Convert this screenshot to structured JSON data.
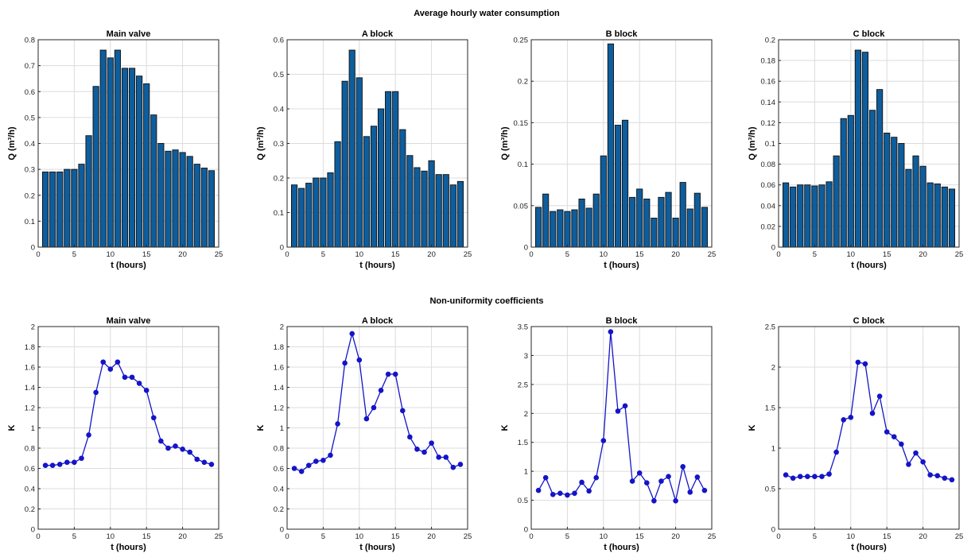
{
  "titles": {
    "top": "Average hourly water consumption",
    "bottom": "Non-uniformity coefficients"
  },
  "colors": {
    "bar": "#0e5d9c",
    "line": "#1414c8"
  },
  "chart_data": [
    {
      "type": "bar",
      "title": "Main valve",
      "xlabel": "t (hours)",
      "ylabel": "Q (m³/h)",
      "xlim": [
        0,
        25
      ],
      "ylim": [
        0,
        0.8
      ],
      "grid": true,
      "xticks": [
        0,
        5,
        10,
        15,
        20,
        25
      ],
      "yticks": [
        0,
        0.1,
        0.2,
        0.3,
        0.4,
        0.5,
        0.6,
        0.7,
        0.8
      ],
      "ytick_labels": [
        "0",
        "0.1",
        "0.2",
        "0.3",
        "0.4",
        "0.5",
        "0.6",
        "0.7",
        "0.8"
      ],
      "x": [
        1,
        2,
        3,
        4,
        5,
        6,
        7,
        8,
        9,
        10,
        11,
        12,
        13,
        14,
        15,
        16,
        17,
        18,
        19,
        20,
        21,
        22,
        23,
        24
      ],
      "values": [
        0.29,
        0.29,
        0.29,
        0.3,
        0.3,
        0.32,
        0.43,
        0.62,
        0.76,
        0.73,
        0.76,
        0.69,
        0.69,
        0.66,
        0.63,
        0.51,
        0.4,
        0.37,
        0.375,
        0.365,
        0.35,
        0.32,
        0.305,
        0.295
      ]
    },
    {
      "type": "bar",
      "title": "A block",
      "xlabel": "t (hours)",
      "ylabel": "Q (m³/h)",
      "xlim": [
        0,
        25
      ],
      "ylim": [
        0,
        0.6
      ],
      "grid": true,
      "xticks": [
        0,
        5,
        10,
        15,
        20,
        25
      ],
      "yticks": [
        0,
        0.1,
        0.2,
        0.3,
        0.4,
        0.5,
        0.6
      ],
      "ytick_labels": [
        "0",
        "0.1",
        "0.2",
        "0.3",
        "0.4",
        "0.5",
        "0.6"
      ],
      "x": [
        1,
        2,
        3,
        4,
        5,
        6,
        7,
        8,
        9,
        10,
        11,
        12,
        13,
        14,
        15,
        16,
        17,
        18,
        19,
        20,
        21,
        22,
        23,
        24
      ],
      "values": [
        0.18,
        0.17,
        0.185,
        0.2,
        0.2,
        0.215,
        0.305,
        0.48,
        0.57,
        0.49,
        0.32,
        0.35,
        0.4,
        0.45,
        0.45,
        0.34,
        0.265,
        0.23,
        0.22,
        0.25,
        0.21,
        0.21,
        0.18,
        0.19
      ]
    },
    {
      "type": "bar",
      "title": "B block",
      "xlabel": "t (hours)",
      "ylabel": "Q (m³/h)",
      "xlim": [
        0,
        25
      ],
      "ylim": [
        0,
        0.25
      ],
      "grid": true,
      "xticks": [
        0,
        5,
        10,
        15,
        20,
        25
      ],
      "yticks": [
        0,
        0.05,
        0.1,
        0.15,
        0.2,
        0.25
      ],
      "ytick_labels": [
        "0",
        "0.05",
        "0.1",
        "0.15",
        "0.2",
        "0.25"
      ],
      "x": [
        1,
        2,
        3,
        4,
        5,
        6,
        7,
        8,
        9,
        10,
        11,
        12,
        13,
        14,
        15,
        16,
        17,
        18,
        19,
        20,
        21,
        22,
        23,
        24
      ],
      "values": [
        0.048,
        0.064,
        0.043,
        0.045,
        0.043,
        0.045,
        0.058,
        0.047,
        0.064,
        0.11,
        0.245,
        0.147,
        0.153,
        0.06,
        0.07,
        0.058,
        0.035,
        0.06,
        0.066,
        0.035,
        0.078,
        0.046,
        0.065,
        0.048
      ]
    },
    {
      "type": "bar",
      "title": "C block",
      "xlabel": "t (hours)",
      "ylabel": "Q (m³/h)",
      "xlim": [
        0,
        25
      ],
      "ylim": [
        0,
        0.2
      ],
      "grid": true,
      "xticks": [
        0,
        5,
        10,
        15,
        20,
        25
      ],
      "yticks": [
        0,
        0.02,
        0.04,
        0.06,
        0.08,
        0.1,
        0.12,
        0.14,
        0.16,
        0.18,
        0.2
      ],
      "ytick_labels": [
        "0",
        "0.02",
        "0.04",
        "0.06",
        "0.08",
        "0.1",
        "0.12",
        "0.14",
        "0.16",
        "0.18",
        "0.2"
      ],
      "x": [
        1,
        2,
        3,
        4,
        5,
        6,
        7,
        8,
        9,
        10,
        11,
        12,
        13,
        14,
        15,
        16,
        17,
        18,
        19,
        20,
        21,
        22,
        23,
        24
      ],
      "values": [
        0.062,
        0.058,
        0.06,
        0.06,
        0.059,
        0.06,
        0.063,
        0.088,
        0.124,
        0.127,
        0.19,
        0.188,
        0.132,
        0.152,
        0.11,
        0.106,
        0.1,
        0.075,
        0.088,
        0.078,
        0.062,
        0.061,
        0.058,
        0.056
      ]
    },
    {
      "type": "line",
      "title": "Main valve",
      "xlabel": "t (hours)",
      "ylabel": "K",
      "xlim": [
        0,
        25
      ],
      "ylim": [
        0,
        2
      ],
      "grid": true,
      "xticks": [
        0,
        5,
        10,
        15,
        20,
        25
      ],
      "yticks": [
        0,
        0.2,
        0.4,
        0.6,
        0.8,
        1.0,
        1.2,
        1.4,
        1.6,
        1.8,
        2.0
      ],
      "ytick_labels": [
        "0",
        "0.2",
        "0.4",
        "0.6",
        "0.8",
        "1",
        "1.2",
        "1.4",
        "1.6",
        "1.8",
        "2"
      ],
      "x": [
        1,
        2,
        3,
        4,
        5,
        6,
        7,
        8,
        9,
        10,
        11,
        12,
        13,
        14,
        15,
        16,
        17,
        18,
        19,
        20,
        21,
        22,
        23,
        24
      ],
      "values": [
        0.63,
        0.63,
        0.64,
        0.66,
        0.66,
        0.7,
        0.93,
        1.35,
        1.65,
        1.58,
        1.65,
        1.5,
        1.5,
        1.44,
        1.37,
        1.1,
        0.87,
        0.8,
        0.82,
        0.79,
        0.76,
        0.69,
        0.66,
        0.64
      ]
    },
    {
      "type": "line",
      "title": "A block",
      "xlabel": "t (hours)",
      "ylabel": "K",
      "xlim": [
        0,
        25
      ],
      "ylim": [
        0,
        2
      ],
      "grid": true,
      "xticks": [
        0,
        5,
        10,
        15,
        20,
        25
      ],
      "yticks": [
        0,
        0.2,
        0.4,
        0.6,
        0.8,
        1.0,
        1.2,
        1.4,
        1.6,
        1.8,
        2.0
      ],
      "ytick_labels": [
        "0",
        "0.2",
        "0.4",
        "0.6",
        "0.8",
        "1",
        "1.2",
        "1.4",
        "1.6",
        "1.8",
        "2"
      ],
      "x": [
        1,
        2,
        3,
        4,
        5,
        6,
        7,
        8,
        9,
        10,
        11,
        12,
        13,
        14,
        15,
        16,
        17,
        18,
        19,
        20,
        21,
        22,
        23,
        24
      ],
      "values": [
        0.6,
        0.57,
        0.63,
        0.67,
        0.68,
        0.73,
        1.04,
        1.64,
        1.93,
        1.67,
        1.09,
        1.2,
        1.37,
        1.53,
        1.53,
        1.17,
        0.91,
        0.79,
        0.76,
        0.85,
        0.71,
        0.71,
        0.61,
        0.64
      ]
    },
    {
      "type": "line",
      "title": "B block",
      "xlabel": "t (hours)",
      "ylabel": "K",
      "xlim": [
        0,
        25
      ],
      "ylim": [
        0,
        3.5
      ],
      "grid": true,
      "xticks": [
        0,
        5,
        10,
        15,
        20,
        25
      ],
      "yticks": [
        0,
        0.5,
        1.0,
        1.5,
        2.0,
        2.5,
        3.0,
        3.5
      ],
      "ytick_labels": [
        "0",
        "0.5",
        "1",
        "1.5",
        "2",
        "2.5",
        "3",
        "3.5"
      ],
      "x": [
        1,
        2,
        3,
        4,
        5,
        6,
        7,
        8,
        9,
        10,
        11,
        12,
        13,
        14,
        15,
        16,
        17,
        18,
        19,
        20,
        21,
        22,
        23,
        24
      ],
      "values": [
        0.67,
        0.89,
        0.6,
        0.62,
        0.59,
        0.62,
        0.81,
        0.66,
        0.89,
        1.53,
        3.41,
        2.04,
        2.13,
        0.83,
        0.97,
        0.8,
        0.49,
        0.83,
        0.91,
        0.49,
        1.08,
        0.64,
        0.9,
        0.67
      ]
    },
    {
      "type": "line",
      "title": "C block",
      "xlabel": "t (hours)",
      "ylabel": "K",
      "xlim": [
        0,
        25
      ],
      "ylim": [
        0,
        2.5
      ],
      "grid": true,
      "xticks": [
        0,
        5,
        10,
        15,
        20,
        25
      ],
      "yticks": [
        0,
        0.5,
        1.0,
        1.5,
        2.0,
        2.5
      ],
      "ytick_labels": [
        "0",
        "0.5",
        "1",
        "1.5",
        "2",
        "2.5"
      ],
      "x": [
        1,
        2,
        3,
        4,
        5,
        6,
        7,
        8,
        9,
        10,
        11,
        12,
        13,
        14,
        15,
        16,
        17,
        18,
        19,
        20,
        21,
        22,
        23,
        24
      ],
      "values": [
        0.67,
        0.63,
        0.65,
        0.65,
        0.65,
        0.65,
        0.68,
        0.95,
        1.35,
        1.38,
        2.06,
        2.04,
        1.43,
        1.64,
        1.2,
        1.14,
        1.05,
        0.8,
        0.94,
        0.83,
        0.67,
        0.66,
        0.63,
        0.61
      ]
    }
  ]
}
